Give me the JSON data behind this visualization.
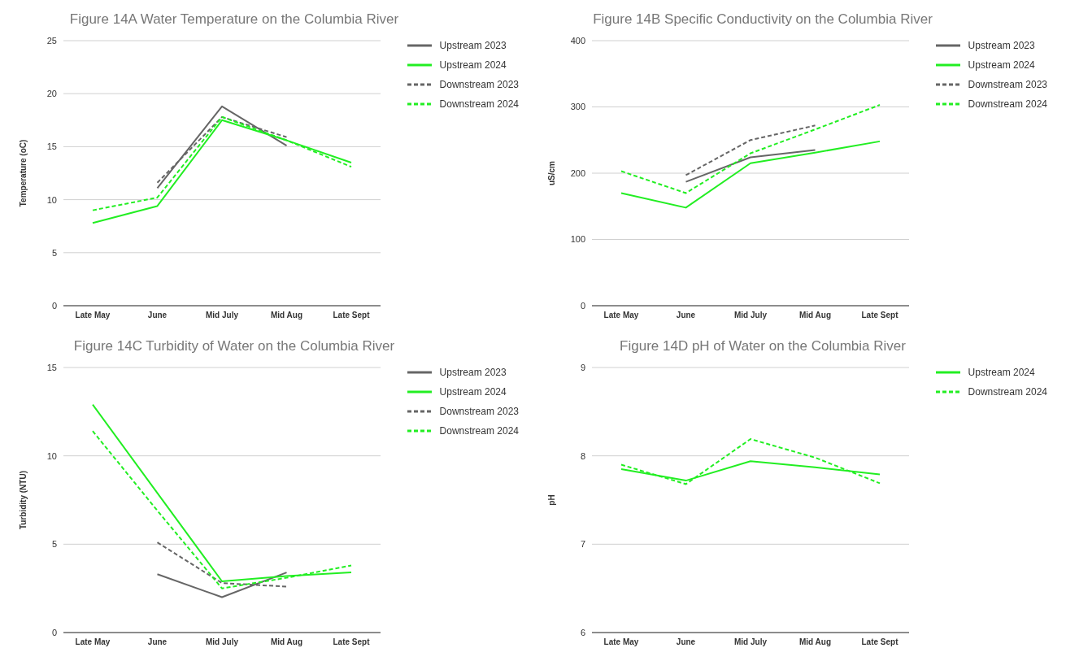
{
  "chart_data": [
    {
      "type": "line",
      "title": "Figure 14A Water Temperature on the Columbia River",
      "ylabel": "Temperature (oC)",
      "categories": [
        "Late May",
        "June",
        "Mid July",
        "Mid Aug",
        "Late Sept"
      ],
      "ylim": [
        0,
        25
      ],
      "yticks": [
        0,
        5,
        10,
        15,
        20,
        25
      ],
      "grid": "y",
      "legend": "top right",
      "marker": "none",
      "series": [
        {
          "name": "Upstream 2023",
          "color": "#666666",
          "line_style": "solid",
          "values": [
            null,
            11.1,
            18.8,
            15.1,
            null
          ]
        },
        {
          "name": "Upstream 2024",
          "color": "#22ee22",
          "line_style": "solid",
          "values": [
            7.8,
            9.4,
            17.5,
            15.6,
            13.5
          ]
        },
        {
          "name": "Downstream 2023",
          "color": "#666666",
          "line_style": "dashed",
          "values": [
            null,
            11.6,
            17.8,
            15.9,
            null
          ]
        },
        {
          "name": "Downstream 2024",
          "color": "#22ee22",
          "line_style": "dashed",
          "values": [
            9.0,
            10.2,
            17.8,
            15.6,
            13.1
          ]
        }
      ]
    },
    {
      "type": "line",
      "title": "Figure 14B Specific Conductivity on the Columbia River",
      "ylabel": "uS/cm",
      "categories": [
        "Late May",
        "June",
        "Mid July",
        "Mid Aug",
        "Late Sept"
      ],
      "ylim": [
        0,
        400
      ],
      "yticks": [
        0,
        100,
        200,
        300,
        400
      ],
      "grid": "y",
      "legend": "top right",
      "marker": "none",
      "series": [
        {
          "name": "Upstream 2023",
          "color": "#666666",
          "line_style": "solid",
          "values": [
            null,
            187,
            224,
            235,
            null
          ]
        },
        {
          "name": "Upstream 2024",
          "color": "#22ee22",
          "line_style": "solid",
          "values": [
            170,
            148,
            215,
            231,
            248
          ]
        },
        {
          "name": "Downstream 2023",
          "color": "#666666",
          "line_style": "dashed",
          "values": [
            null,
            197,
            250,
            272,
            null
          ]
        },
        {
          "name": "Downstream 2024",
          "color": "#22ee22",
          "line_style": "dashed",
          "values": [
            203,
            170,
            230,
            266,
            303
          ]
        }
      ]
    },
    {
      "type": "line",
      "title": "Figure 14C Turbidity of Water on the Columbia River",
      "ylabel": "Turbidity (NTU)",
      "categories": [
        "Late May",
        "June",
        "Mid July",
        "Mid Aug",
        "Late Sept"
      ],
      "ylim": [
        0,
        15
      ],
      "yticks": [
        0,
        5,
        10,
        15
      ],
      "grid": "y",
      "legend": "top right",
      "marker": "none",
      "series": [
        {
          "name": "Upstream 2023",
          "color": "#666666",
          "line_style": "solid",
          "values": [
            null,
            3.3,
            2.0,
            3.4,
            null
          ]
        },
        {
          "name": "Upstream 2024",
          "color": "#22ee22",
          "line_style": "solid",
          "values": [
            12.9,
            7.9,
            2.9,
            3.2,
            3.4
          ]
        },
        {
          "name": "Downstream 2023",
          "color": "#666666",
          "line_style": "dashed",
          "values": [
            null,
            5.1,
            2.8,
            2.6,
            null
          ]
        },
        {
          "name": "Downstream 2024",
          "color": "#22ee22",
          "line_style": "dashed",
          "values": [
            11.4,
            6.9,
            2.5,
            3.1,
            3.8
          ]
        }
      ]
    },
    {
      "type": "line",
      "title": "Figure 14D pH of Water on the Columbia River",
      "ylabel": "pH",
      "categories": [
        "Late May",
        "June",
        "Mid July",
        "Mid Aug",
        "Late Sept"
      ],
      "ylim": [
        6,
        9
      ],
      "yticks": [
        6,
        7,
        8,
        9
      ],
      "grid": "y",
      "legend": "top right",
      "marker": "none",
      "series": [
        {
          "name": "Upstream 2024",
          "color": "#22ee22",
          "line_style": "solid",
          "values": [
            7.85,
            7.72,
            7.94,
            7.87,
            7.79
          ]
        },
        {
          "name": "Downstream 2024",
          "color": "#22ee22",
          "line_style": "dashed",
          "values": [
            7.9,
            7.68,
            8.19,
            7.98,
            7.69
          ]
        }
      ]
    }
  ]
}
